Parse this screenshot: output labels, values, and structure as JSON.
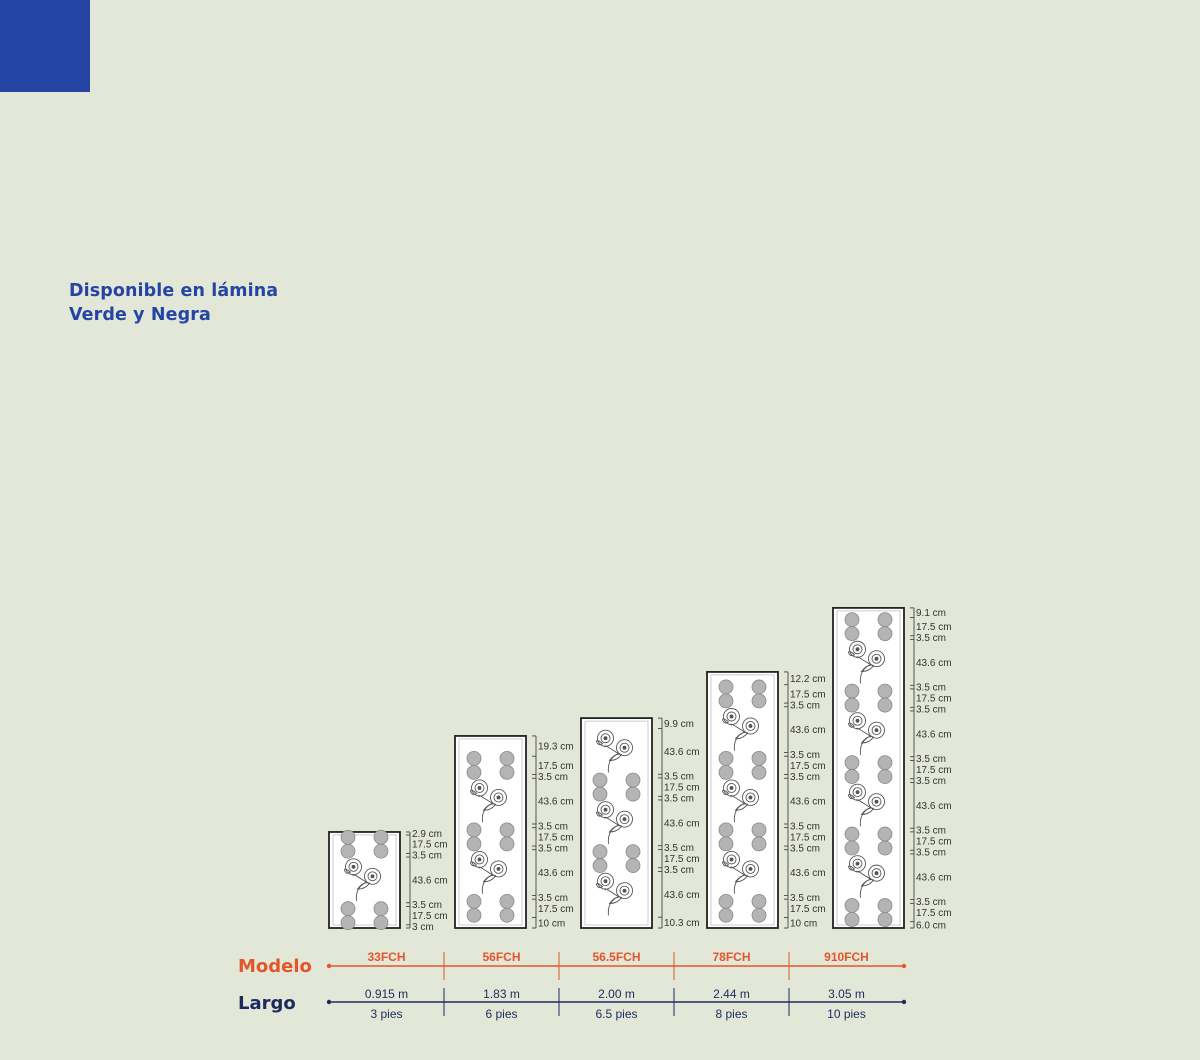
{
  "heading": {
    "line1": "Disponible en lámina",
    "line2": "Verde y Negra"
  },
  "labels": {
    "modelo": "Modelo",
    "largo": "Largo"
  },
  "colors": {
    "background": "#e3e7d8",
    "accent_blue": "#2445a4",
    "modelo_orange": "#e2562a",
    "largo_navy": "#1c2b5e",
    "panel_fill": "#ffffff",
    "panel_border": "#222222",
    "hole": "#b4b4b4"
  },
  "panels": [
    {
      "model": "33FCH",
      "length_m": "0.915 m",
      "length_ft": "3 pies",
      "segments": [
        {
          "kind": "margin",
          "label": "2.9 cm"
        },
        {
          "kind": "holes",
          "label": "17.5 cm"
        },
        {
          "kind": "gap",
          "label": "3.5 cm"
        },
        {
          "kind": "flower",
          "label": "43.6 cm"
        },
        {
          "kind": "gap",
          "label": "3.5 cm"
        },
        {
          "kind": "holes",
          "label": "17.5 cm"
        },
        {
          "kind": "margin",
          "label": "3 cm"
        }
      ]
    },
    {
      "model": "56FCH",
      "length_m": "1.83 m",
      "length_ft": "6 pies",
      "segments": [
        {
          "kind": "margin",
          "label": "19.3 cm"
        },
        {
          "kind": "holes",
          "label": "17.5 cm"
        },
        {
          "kind": "gap",
          "label": "3.5 cm"
        },
        {
          "kind": "flower",
          "label": "43.6 cm"
        },
        {
          "kind": "gap",
          "label": "3.5 cm"
        },
        {
          "kind": "holes",
          "label": "17.5 cm"
        },
        {
          "kind": "gap",
          "label": "3.5 cm"
        },
        {
          "kind": "flower",
          "label": "43.6 cm"
        },
        {
          "kind": "gap",
          "label": "3.5 cm"
        },
        {
          "kind": "holes",
          "label": "17.5 cm"
        },
        {
          "kind": "margin",
          "label": "10 cm"
        }
      ]
    },
    {
      "model": "56.5FCH",
      "length_m": "2.00 m",
      "length_ft": "6.5 pies",
      "segments": [
        {
          "kind": "margin",
          "label": "9.9 cm"
        },
        {
          "kind": "flower",
          "label": "43.6 cm"
        },
        {
          "kind": "gap",
          "label": "3.5 cm"
        },
        {
          "kind": "holes",
          "label": "17.5 cm"
        },
        {
          "kind": "gap",
          "label": "3.5 cm"
        },
        {
          "kind": "flower",
          "label": "43.6 cm"
        },
        {
          "kind": "gap",
          "label": "3.5 cm"
        },
        {
          "kind": "holes",
          "label": "17.5 cm"
        },
        {
          "kind": "gap",
          "label": "3.5 cm"
        },
        {
          "kind": "flower",
          "label": "43.6 cm"
        },
        {
          "kind": "margin",
          "label": "10.3 cm"
        }
      ]
    },
    {
      "model": "78FCH",
      "length_m": "2.44 m",
      "length_ft": "8 pies",
      "segments": [
        {
          "kind": "margin",
          "label": "12.2 cm"
        },
        {
          "kind": "holes",
          "label": "17.5 cm"
        },
        {
          "kind": "gap",
          "label": "3.5 cm"
        },
        {
          "kind": "flower",
          "label": "43.6 cm"
        },
        {
          "kind": "gap",
          "label": "3.5 cm"
        },
        {
          "kind": "holes",
          "label": "17.5 cm"
        },
        {
          "kind": "gap",
          "label": "3.5 cm"
        },
        {
          "kind": "flower",
          "label": "43.6 cm"
        },
        {
          "kind": "gap",
          "label": "3.5 cm"
        },
        {
          "kind": "holes",
          "label": "17.5 cm"
        },
        {
          "kind": "gap",
          "label": "3.5 cm"
        },
        {
          "kind": "flower",
          "label": "43.6 cm"
        },
        {
          "kind": "gap",
          "label": "3.5 cm"
        },
        {
          "kind": "holes",
          "label": "17.5 cm"
        },
        {
          "kind": "margin",
          "label": "10 cm"
        }
      ]
    },
    {
      "model": "910FCH",
      "length_m": "3.05 m",
      "length_ft": "10 pies",
      "segments": [
        {
          "kind": "margin",
          "label": "9.1 cm"
        },
        {
          "kind": "holes",
          "label": "17.5 cm"
        },
        {
          "kind": "gap",
          "label": "3.5 cm"
        },
        {
          "kind": "flower",
          "label": "43.6 cm"
        },
        {
          "kind": "gap",
          "label": "3.5 cm"
        },
        {
          "kind": "holes",
          "label": "17.5 cm"
        },
        {
          "kind": "gap",
          "label": "3.5 cm"
        },
        {
          "kind": "flower",
          "label": "43.6 cm"
        },
        {
          "kind": "gap",
          "label": "3.5 cm"
        },
        {
          "kind": "holes",
          "label": "17.5 cm"
        },
        {
          "kind": "gap",
          "label": "3.5 cm"
        },
        {
          "kind": "flower",
          "label": "43.6 cm"
        },
        {
          "kind": "gap",
          "label": "3.5 cm"
        },
        {
          "kind": "holes",
          "label": "17.5 cm"
        },
        {
          "kind": "gap",
          "label": "3.5 cm"
        },
        {
          "kind": "flower",
          "label": "43.6 cm"
        },
        {
          "kind": "gap",
          "label": "3.5 cm"
        },
        {
          "kind": "holes",
          "label": "17.5 cm"
        },
        {
          "kind": "margin",
          "label": "6.0 cm"
        }
      ]
    }
  ]
}
